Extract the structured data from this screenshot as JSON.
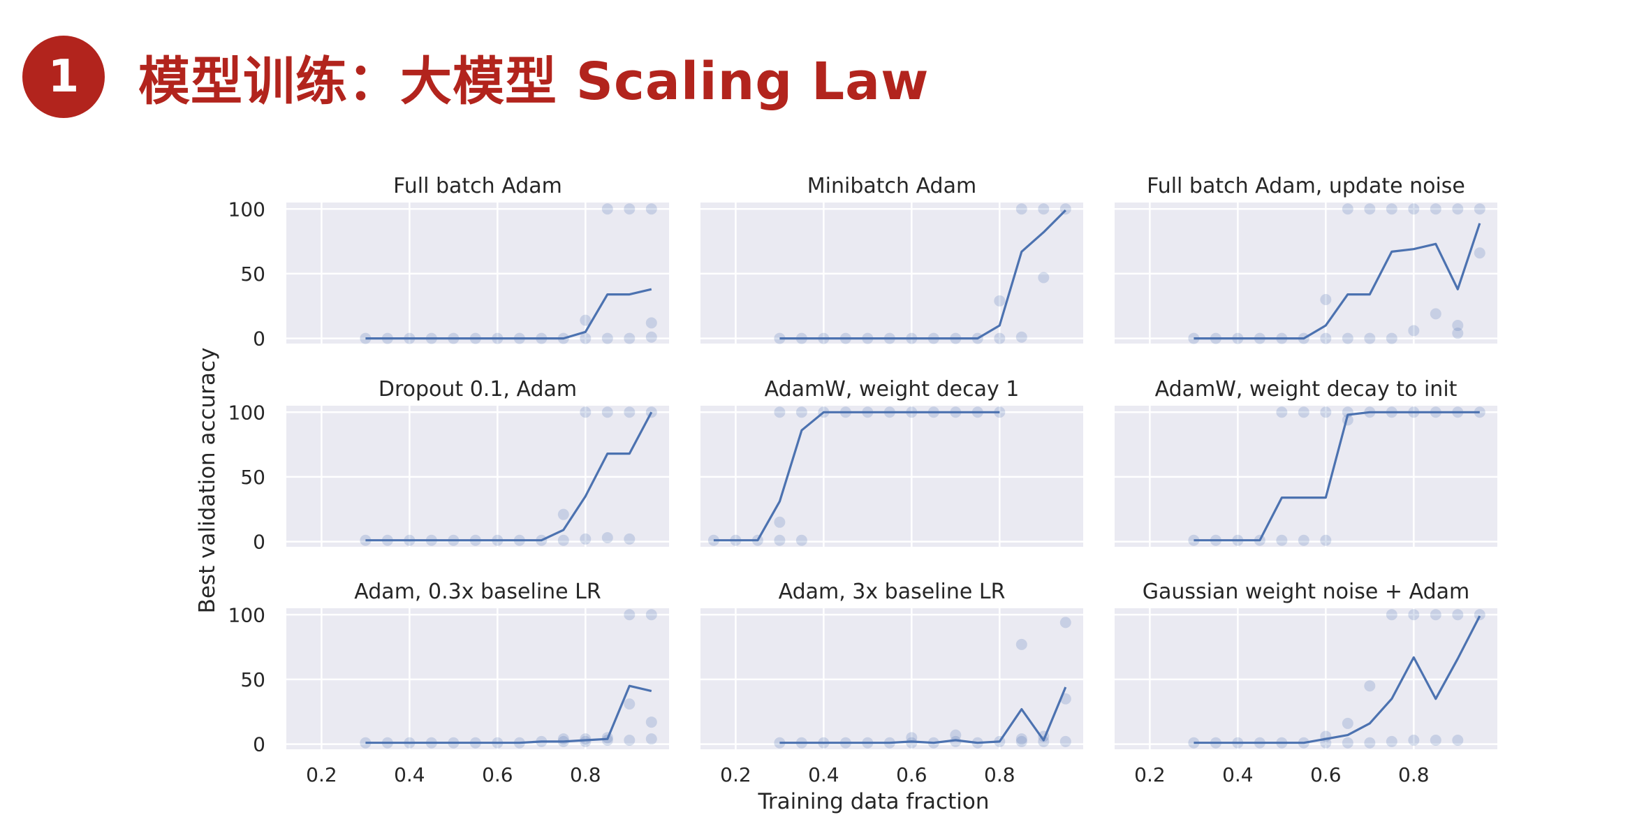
{
  "header": {
    "badge_number": "1",
    "title": "模型训练：大模型 Scaling Law"
  },
  "colors": {
    "accent": "#b2241d",
    "line": "#4c72b0",
    "panel_bg": "#eaeaf2",
    "grid": "#ffffff"
  },
  "chart_data": {
    "type": "line",
    "xlabel": "Training data fraction",
    "ylabel": "Best validation accuracy",
    "xticks": [
      0.2,
      0.4,
      0.6,
      0.8
    ],
    "xtick_labels": [
      "0.2",
      "0.4",
      "0.6",
      "0.8"
    ],
    "yticks": [
      0,
      50,
      100
    ],
    "ytick_labels": [
      "0",
      "50",
      "100"
    ],
    "xlim": [
      0.12,
      0.99
    ],
    "ylim": [
      -4,
      105
    ],
    "grid": true,
    "panels": [
      {
        "title": "Full batch Adam",
        "x": [
          0.3,
          0.35,
          0.4,
          0.45,
          0.5,
          0.55,
          0.6,
          0.65,
          0.7,
          0.75,
          0.8,
          0.85,
          0.9,
          0.95
        ],
        "mean": [
          0,
          0,
          0,
          0,
          0,
          0,
          0,
          0,
          0,
          0,
          5,
          34,
          34,
          38
        ],
        "points": [
          [
            0.3,
            0
          ],
          [
            0.35,
            0
          ],
          [
            0.4,
            0
          ],
          [
            0.45,
            0
          ],
          [
            0.5,
            0
          ],
          [
            0.55,
            0
          ],
          [
            0.6,
            0
          ],
          [
            0.65,
            0
          ],
          [
            0.7,
            0
          ],
          [
            0.75,
            0
          ],
          [
            0.8,
            0
          ],
          [
            0.8,
            14
          ],
          [
            0.85,
            0
          ],
          [
            0.85,
            100
          ],
          [
            0.9,
            0
          ],
          [
            0.9,
            100
          ],
          [
            0.95,
            1
          ],
          [
            0.95,
            12
          ],
          [
            0.95,
            100
          ]
        ]
      },
      {
        "title": "Minibatch Adam",
        "x": [
          0.3,
          0.35,
          0.4,
          0.45,
          0.5,
          0.55,
          0.6,
          0.65,
          0.7,
          0.75,
          0.8,
          0.85,
          0.9,
          0.95
        ],
        "mean": [
          0,
          0,
          0,
          0,
          0,
          0,
          0,
          0,
          0,
          0,
          10,
          67,
          82,
          99
        ],
        "points": [
          [
            0.3,
            0
          ],
          [
            0.35,
            0
          ],
          [
            0.4,
            0
          ],
          [
            0.45,
            0
          ],
          [
            0.5,
            0
          ],
          [
            0.55,
            0
          ],
          [
            0.6,
            0
          ],
          [
            0.65,
            0
          ],
          [
            0.7,
            0
          ],
          [
            0.75,
            0
          ],
          [
            0.8,
            0
          ],
          [
            0.8,
            29
          ],
          [
            0.85,
            1
          ],
          [
            0.85,
            100
          ],
          [
            0.9,
            47
          ],
          [
            0.9,
            100
          ],
          [
            0.95,
            100
          ]
        ]
      },
      {
        "title": "Full batch Adam, update noise",
        "x": [
          0.3,
          0.35,
          0.4,
          0.45,
          0.5,
          0.55,
          0.6,
          0.65,
          0.7,
          0.75,
          0.8,
          0.85,
          0.9,
          0.95
        ],
        "mean": [
          0,
          0,
          0,
          0,
          0,
          0,
          10,
          34,
          34,
          67,
          69,
          73,
          38,
          89
        ],
        "points": [
          [
            0.3,
            0
          ],
          [
            0.35,
            0
          ],
          [
            0.4,
            0
          ],
          [
            0.45,
            0
          ],
          [
            0.5,
            0
          ],
          [
            0.55,
            0
          ],
          [
            0.6,
            0
          ],
          [
            0.6,
            30
          ],
          [
            0.65,
            0
          ],
          [
            0.65,
            100
          ],
          [
            0.7,
            0
          ],
          [
            0.7,
            100
          ],
          [
            0.75,
            0
          ],
          [
            0.75,
            100
          ],
          [
            0.8,
            6
          ],
          [
            0.8,
            100
          ],
          [
            0.85,
            19
          ],
          [
            0.85,
            100
          ],
          [
            0.9,
            4
          ],
          [
            0.9,
            10
          ],
          [
            0.9,
            100
          ],
          [
            0.95,
            66
          ],
          [
            0.95,
            100
          ]
        ]
      },
      {
        "title": "Dropout 0.1, Adam",
        "x": [
          0.3,
          0.35,
          0.4,
          0.45,
          0.5,
          0.55,
          0.6,
          0.65,
          0.7,
          0.75,
          0.8,
          0.85,
          0.9,
          0.95
        ],
        "mean": [
          1,
          1,
          1,
          1,
          1,
          1,
          1,
          1,
          1,
          9,
          35,
          68,
          68,
          100
        ],
        "points": [
          [
            0.3,
            1
          ],
          [
            0.35,
            1
          ],
          [
            0.4,
            1
          ],
          [
            0.45,
            1
          ],
          [
            0.5,
            1
          ],
          [
            0.55,
            1
          ],
          [
            0.6,
            1
          ],
          [
            0.65,
            1
          ],
          [
            0.7,
            1
          ],
          [
            0.75,
            1
          ],
          [
            0.75,
            21
          ],
          [
            0.8,
            2
          ],
          [
            0.8,
            100
          ],
          [
            0.85,
            3
          ],
          [
            0.85,
            100
          ],
          [
            0.9,
            2
          ],
          [
            0.9,
            100
          ],
          [
            0.95,
            100
          ]
        ]
      },
      {
        "title": "AdamW, weight decay 1",
        "x": [
          0.15,
          0.2,
          0.25,
          0.3,
          0.35,
          0.4,
          0.45,
          0.5,
          0.55,
          0.6,
          0.65,
          0.7,
          0.75,
          0.8
        ],
        "mean": [
          1,
          1,
          1,
          31,
          86,
          100,
          100,
          100,
          100,
          100,
          100,
          100,
          100,
          100
        ],
        "points": [
          [
            0.15,
            1
          ],
          [
            0.2,
            1
          ],
          [
            0.25,
            1
          ],
          [
            0.3,
            1
          ],
          [
            0.3,
            15
          ],
          [
            0.3,
            100
          ],
          [
            0.35,
            1
          ],
          [
            0.35,
            100
          ],
          [
            0.4,
            100
          ],
          [
            0.45,
            100
          ],
          [
            0.5,
            100
          ],
          [
            0.55,
            100
          ],
          [
            0.6,
            100
          ],
          [
            0.65,
            100
          ],
          [
            0.7,
            100
          ],
          [
            0.75,
            100
          ],
          [
            0.8,
            100
          ]
        ]
      },
      {
        "title": "AdamW, weight decay to init",
        "x": [
          0.3,
          0.35,
          0.4,
          0.45,
          0.5,
          0.55,
          0.6,
          0.65,
          0.7,
          0.75,
          0.8,
          0.85,
          0.9,
          0.95
        ],
        "mean": [
          1,
          1,
          1,
          1,
          34,
          34,
          34,
          98,
          100,
          100,
          100,
          100,
          100,
          100
        ],
        "points": [
          [
            0.3,
            1
          ],
          [
            0.35,
            1
          ],
          [
            0.4,
            1
          ],
          [
            0.45,
            1
          ],
          [
            0.5,
            1
          ],
          [
            0.5,
            100
          ],
          [
            0.55,
            1
          ],
          [
            0.55,
            100
          ],
          [
            0.6,
            1
          ],
          [
            0.6,
            100
          ],
          [
            0.65,
            94
          ],
          [
            0.65,
            100
          ],
          [
            0.7,
            100
          ],
          [
            0.75,
            100
          ],
          [
            0.8,
            100
          ],
          [
            0.85,
            100
          ],
          [
            0.9,
            100
          ],
          [
            0.95,
            100
          ]
        ]
      },
      {
        "title": "Adam, 0.3x baseline LR",
        "x": [
          0.3,
          0.35,
          0.4,
          0.45,
          0.5,
          0.55,
          0.6,
          0.65,
          0.7,
          0.75,
          0.8,
          0.85,
          0.9,
          0.95
        ],
        "mean": [
          1,
          1,
          1,
          1,
          1,
          1,
          1,
          1,
          2,
          2,
          3,
          4,
          45,
          41
        ],
        "points": [
          [
            0.3,
            1
          ],
          [
            0.35,
            1
          ],
          [
            0.4,
            1
          ],
          [
            0.45,
            1
          ],
          [
            0.5,
            1
          ],
          [
            0.55,
            1
          ],
          [
            0.6,
            1
          ],
          [
            0.65,
            1
          ],
          [
            0.7,
            2
          ],
          [
            0.75,
            2
          ],
          [
            0.75,
            4
          ],
          [
            0.8,
            2
          ],
          [
            0.8,
            4
          ],
          [
            0.85,
            3
          ],
          [
            0.85,
            5
          ],
          [
            0.9,
            3
          ],
          [
            0.9,
            31
          ],
          [
            0.9,
            100
          ],
          [
            0.95,
            4
          ],
          [
            0.95,
            17
          ],
          [
            0.95,
            100
          ]
        ]
      },
      {
        "title": "Adam, 3x baseline LR",
        "x": [
          0.3,
          0.35,
          0.4,
          0.45,
          0.5,
          0.55,
          0.6,
          0.65,
          0.7,
          0.75,
          0.8,
          0.85,
          0.9,
          0.95
        ],
        "mean": [
          1,
          1,
          1,
          1,
          1,
          1,
          2,
          1,
          3,
          1,
          2,
          27,
          3,
          44
        ],
        "points": [
          [
            0.3,
            1
          ],
          [
            0.35,
            1
          ],
          [
            0.4,
            1
          ],
          [
            0.45,
            1
          ],
          [
            0.5,
            1
          ],
          [
            0.55,
            1
          ],
          [
            0.6,
            1
          ],
          [
            0.6,
            5
          ],
          [
            0.65,
            1
          ],
          [
            0.7,
            2
          ],
          [
            0.7,
            7
          ],
          [
            0.75,
            1
          ],
          [
            0.8,
            2
          ],
          [
            0.85,
            2
          ],
          [
            0.85,
            4
          ],
          [
            0.85,
            77
          ],
          [
            0.9,
            2
          ],
          [
            0.9,
            6
          ],
          [
            0.95,
            2
          ],
          [
            0.95,
            35
          ],
          [
            0.95,
            94
          ]
        ]
      },
      {
        "title": "Gaussian weight noise + Adam",
        "x": [
          0.3,
          0.35,
          0.4,
          0.45,
          0.5,
          0.55,
          0.6,
          0.65,
          0.7,
          0.75,
          0.8,
          0.85,
          0.9,
          0.95
        ],
        "mean": [
          1,
          1,
          1,
          1,
          1,
          1,
          4,
          7,
          16,
          35,
          67,
          35,
          66,
          99
        ],
        "points": [
          [
            0.3,
            1
          ],
          [
            0.35,
            1
          ],
          [
            0.4,
            1
          ],
          [
            0.45,
            1
          ],
          [
            0.5,
            1
          ],
          [
            0.55,
            1
          ],
          [
            0.6,
            1
          ],
          [
            0.6,
            6
          ],
          [
            0.65,
            1
          ],
          [
            0.65,
            16
          ],
          [
            0.7,
            1
          ],
          [
            0.7,
            45
          ],
          [
            0.75,
            2
          ],
          [
            0.75,
            100
          ],
          [
            0.8,
            3
          ],
          [
            0.8,
            100
          ],
          [
            0.85,
            3
          ],
          [
            0.85,
            100
          ],
          [
            0.9,
            3
          ],
          [
            0.9,
            100
          ],
          [
            0.95,
            100
          ]
        ]
      }
    ]
  }
}
